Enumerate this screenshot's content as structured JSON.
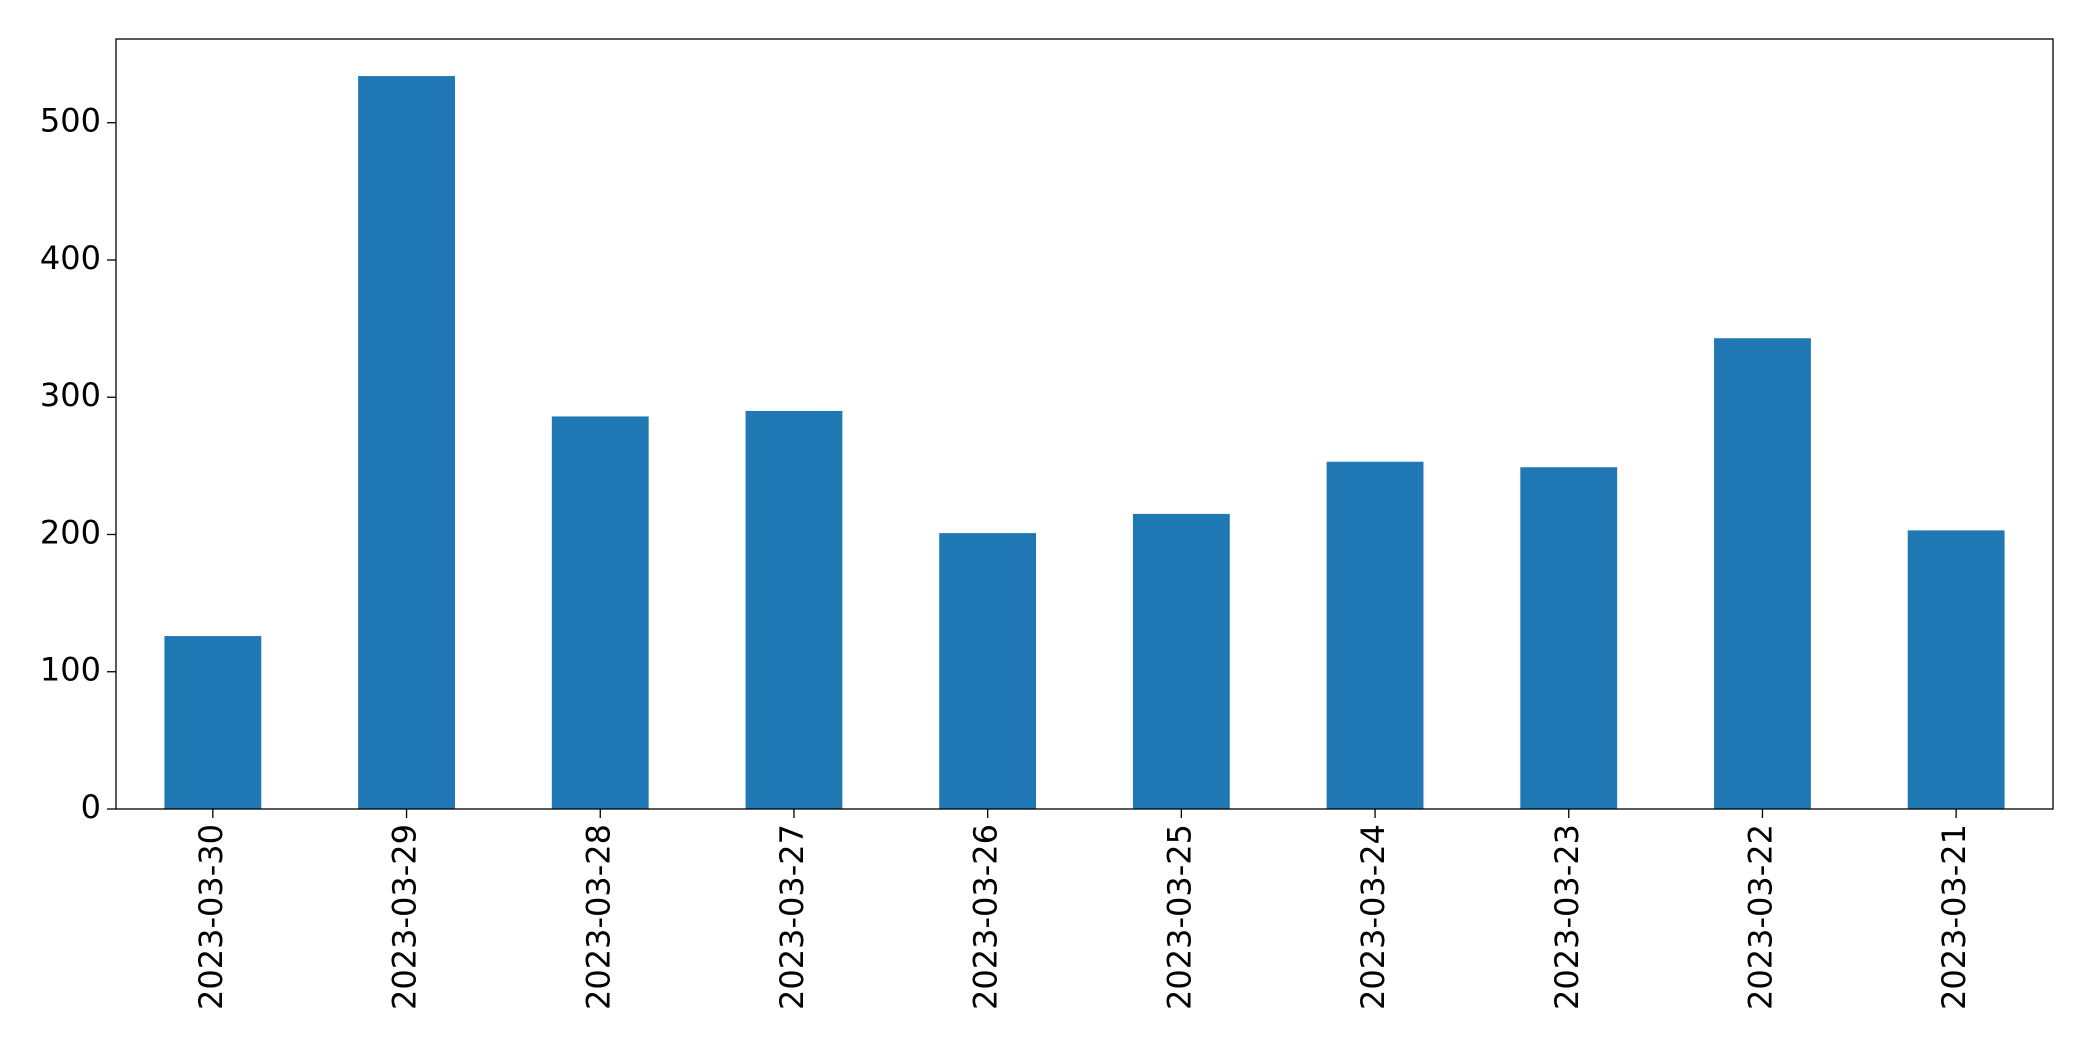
{
  "chart_data": {
    "type": "bar",
    "categories": [
      "2023-03-30",
      "2023-03-29",
      "2023-03-28",
      "2023-03-27",
      "2023-03-26",
      "2023-03-25",
      "2023-03-24",
      "2023-03-23",
      "2023-03-22",
      "2023-03-21"
    ],
    "values": [
      126,
      534,
      286,
      290,
      201,
      215,
      253,
      249,
      343,
      203
    ],
    "color": "#1f77b4",
    "ylim": [
      0,
      561
    ],
    "yticks": [
      0,
      100,
      200,
      300,
      400,
      500
    ],
    "grid": false
  }
}
